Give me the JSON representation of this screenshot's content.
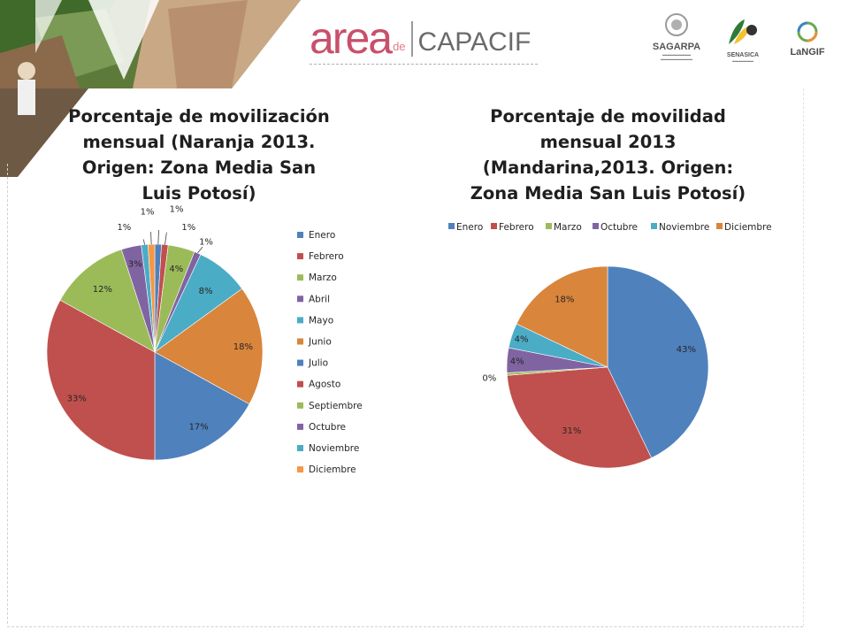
{
  "header": {
    "brand_area": "area",
    "brand_de": "de",
    "brand_capacif": "CAPACIF",
    "logos": [
      "SAGARPA",
      "SENASICA",
      "LaNGIF"
    ]
  },
  "colors": {
    "blue": "#4f81bd",
    "red": "#c0504d",
    "green": "#9bbb59",
    "purple": "#8064a2",
    "teal": "#4bacc6",
    "orange": "#f79646",
    "orange_dark": "#d9853b"
  },
  "chart_data": [
    {
      "type": "pie",
      "title": "Porcentaje de movilización mensual (Naranja 2013. Origen: Zona Media San Luis Potosí)",
      "legend_position": "right",
      "categories": [
        "Enero",
        "Febrero",
        "Marzo",
        "Abril",
        "Mayo",
        "Junio",
        "Julio",
        "Agosto",
        "Septiembre",
        "Octubre",
        "Noviembre",
        "Diciembre"
      ],
      "values": [
        1,
        1,
        4,
        1,
        8,
        18,
        17,
        33,
        12,
        3,
        1,
        1
      ],
      "labels": [
        "1%",
        "1%",
        "4%",
        "1%",
        "8%",
        "18%",
        "17%",
        "33%",
        "12%",
        "3%",
        "1%",
        "1%"
      ],
      "colors": [
        "#4f81bd",
        "#c0504d",
        "#9bbb59",
        "#8064a2",
        "#4bacc6",
        "#d9853b",
        "#4f81bd",
        "#c0504d",
        "#9bbb59",
        "#8064a2",
        "#4bacc6",
        "#f79646"
      ]
    },
    {
      "type": "pie",
      "title": "Porcentaje de movilidad mensual 2013 (Mandarina,2013. Origen: Zona Media San Luis Potosí)",
      "legend_position": "top",
      "categories": [
        "Enero",
        "Febrero",
        "Marzo",
        "Octubre",
        "Noviembre",
        "Diciembre"
      ],
      "values": [
        43,
        31,
        0.4,
        4,
        4,
        18
      ],
      "labels": [
        "43%",
        "31%",
        "0%",
        "4%",
        "4%",
        "18%"
      ],
      "colors": [
        "#4f81bd",
        "#c0504d",
        "#9bbb59",
        "#8064a2",
        "#4bacc6",
        "#d9853b"
      ]
    }
  ]
}
